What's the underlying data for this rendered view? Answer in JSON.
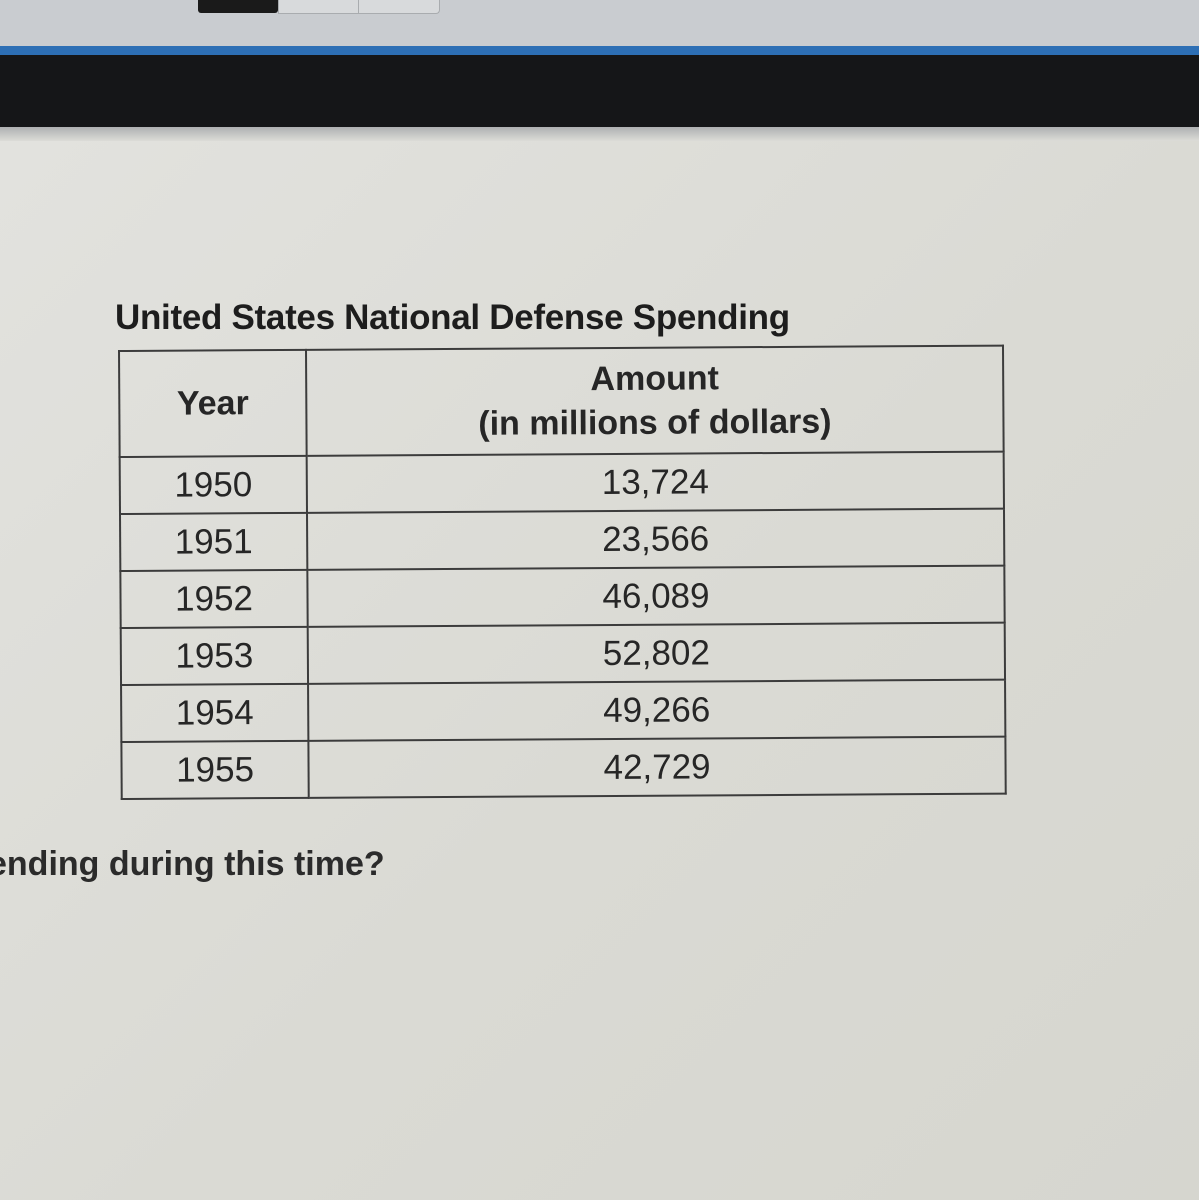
{
  "table": {
    "title": "United States National Defense Spending",
    "headers": {
      "year": "Year",
      "amount_line1": "Amount",
      "amount_line2": "(in millions of dollars)"
    },
    "rows": [
      {
        "year": "1950",
        "amount": "13,724"
      },
      {
        "year": "1951",
        "amount": "23,566"
      },
      {
        "year": "1952",
        "amount": "46,089"
      },
      {
        "year": "1953",
        "amount": "52,802"
      },
      {
        "year": "1954",
        "amount": "49,266"
      },
      {
        "year": "1955",
        "amount": "42,729"
      }
    ]
  },
  "question": {
    "visible_text": "ending during this time?"
  },
  "colors": {
    "browser_chrome": "#c9ccd0",
    "accent_strip": "#2d6fb5",
    "header_bar": "#151618",
    "page_background": "#dcdcd7",
    "text": "#1d1d1d"
  }
}
